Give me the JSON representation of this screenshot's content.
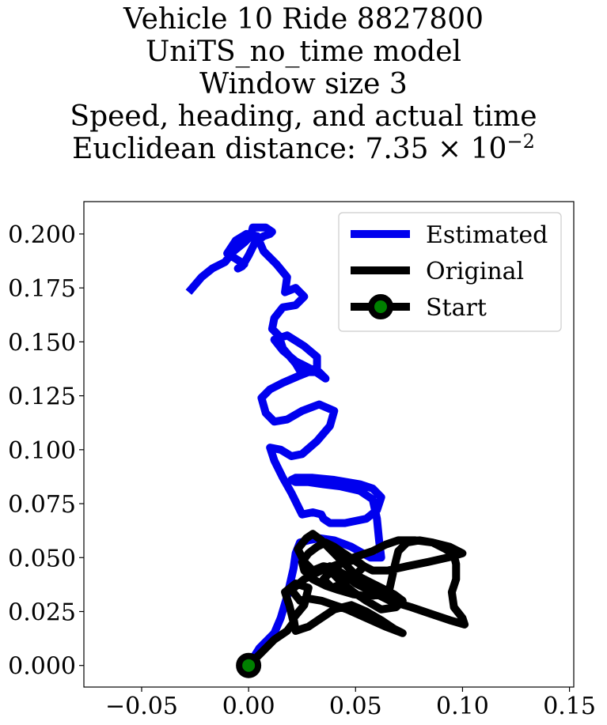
{
  "title": {
    "line1": "Vehicle 10 Ride 8827800",
    "line2": "UniTS_no_time model",
    "line3": "Window size 3",
    "line4": "Speed, heading, and actual time",
    "line5_prefix": "Euclidean distance: 7.35 × 10",
    "line5_exp": "−2"
  },
  "chart_data": {
    "type": "line",
    "title": "Vehicle 10 Ride 8827800 / UniTS_no_time model / Window size 3 / Speed, heading, and actual time / Euclidean distance: 7.35 × 10^-2",
    "xlabel": "",
    "ylabel": "",
    "xlim": [
      -0.077,
      0.152
    ],
    "ylim": [
      -0.01,
      0.215
    ],
    "x_ticks": [
      "−0.05",
      "0.00",
      "0.05",
      "0.10",
      "0.15"
    ],
    "x_tick_values": [
      -0.05,
      0.0,
      0.05,
      0.1,
      0.15
    ],
    "y_ticks": [
      "0.000",
      "0.025",
      "0.050",
      "0.075",
      "0.100",
      "0.125",
      "0.150",
      "0.175",
      "0.200"
    ],
    "y_tick_values": [
      0.0,
      0.025,
      0.05,
      0.075,
      0.1,
      0.125,
      0.15,
      0.175,
      0.2
    ],
    "grid": false,
    "legend_position": "top-right",
    "legend": [
      "Estimated",
      "Original",
      "Start"
    ],
    "colors": {
      "estimated": "#0000ee",
      "original": "#000000",
      "start_fill": "#008000",
      "start_edge": "#000000"
    },
    "series": [
      {
        "name": "Estimated",
        "x": [
          0.0,
          0.005,
          0.012,
          0.015,
          0.018,
          0.021,
          0.022,
          0.024,
          0.028,
          0.033,
          0.04,
          0.048,
          0.057,
          0.062,
          0.061,
          0.06,
          0.058,
          0.052,
          0.043,
          0.035,
          0.028,
          0.022,
          0.02,
          0.022,
          0.03,
          0.04,
          0.052,
          0.058,
          0.062,
          0.06,
          0.055,
          0.045,
          0.038,
          0.035,
          0.034,
          0.03,
          0.025,
          0.02,
          0.016,
          0.012,
          0.01,
          0.015,
          0.02,
          0.025,
          0.032,
          0.038,
          0.04,
          0.033,
          0.025,
          0.018,
          0.012,
          0.008,
          0.006,
          0.01,
          0.016,
          0.023,
          0.028,
          0.033,
          0.036,
          0.03,
          0.022,
          0.016,
          0.012,
          0.018,
          0.026,
          0.032,
          0.032,
          0.025,
          0.022,
          0.016,
          0.014,
          0.011,
          0.012,
          0.016,
          0.022,
          0.026,
          0.022,
          0.017,
          0.018,
          0.013,
          0.007,
          0.004,
          -0.001,
          -0.006,
          -0.01,
          -0.002,
          -0.005,
          -0.003,
          0.0,
          0.003,
          0.007,
          0.01,
          0.011,
          0.008,
          0.002,
          0.001,
          -0.002,
          -0.007,
          -0.011,
          -0.017,
          -0.022,
          -0.028
        ],
        "y": [
          0.0,
          0.008,
          0.015,
          0.022,
          0.032,
          0.045,
          0.052,
          0.057,
          0.058,
          0.059,
          0.058,
          0.055,
          0.05,
          0.05,
          0.058,
          0.068,
          0.077,
          0.081,
          0.083,
          0.084,
          0.085,
          0.085,
          0.086,
          0.087,
          0.087,
          0.086,
          0.084,
          0.082,
          0.078,
          0.072,
          0.068,
          0.066,
          0.066,
          0.068,
          0.07,
          0.071,
          0.07,
          0.08,
          0.087,
          0.095,
          0.101,
          0.1,
          0.097,
          0.098,
          0.104,
          0.111,
          0.118,
          0.121,
          0.118,
          0.114,
          0.113,
          0.117,
          0.124,
          0.128,
          0.131,
          0.134,
          0.136,
          0.136,
          0.133,
          0.137,
          0.141,
          0.146,
          0.151,
          0.153,
          0.148,
          0.143,
          0.138,
          0.135,
          0.14,
          0.147,
          0.153,
          0.156,
          0.161,
          0.166,
          0.167,
          0.171,
          0.175,
          0.173,
          0.18,
          0.186,
          0.192,
          0.199,
          0.2,
          0.197,
          0.191,
          0.186,
          0.184,
          0.185,
          0.19,
          0.196,
          0.199,
          0.2,
          0.201,
          0.203,
          0.203,
          0.199,
          0.196,
          0.192,
          0.187,
          0.184,
          0.18,
          0.173
        ]
      },
      {
        "name": "Original",
        "x": [
          0.0,
          0.006,
          0.012,
          0.018,
          0.021,
          0.019,
          0.017,
          0.022,
          0.028,
          0.026,
          0.021,
          0.022,
          0.028,
          0.034,
          0.04,
          0.048,
          0.055,
          0.062,
          0.068,
          0.072,
          0.064,
          0.055,
          0.046,
          0.04,
          0.034,
          0.028,
          0.024,
          0.02,
          0.026,
          0.034,
          0.042,
          0.05,
          0.054,
          0.05,
          0.044,
          0.039,
          0.035,
          0.04,
          0.046,
          0.052,
          0.058,
          0.064,
          0.07,
          0.078,
          0.086,
          0.094,
          0.1,
          0.093,
          0.084,
          0.074,
          0.065,
          0.058,
          0.052,
          0.046,
          0.04,
          0.036,
          0.032,
          0.028,
          0.025,
          0.026,
          0.03,
          0.036,
          0.042,
          0.049,
          0.056,
          0.062,
          0.066,
          0.068,
          0.07,
          0.074,
          0.08,
          0.086,
          0.092,
          0.096,
          0.097,
          0.097,
          0.095,
          0.096,
          0.1,
          0.101,
          0.094,
          0.085,
          0.076,
          0.066,
          0.058,
          0.05,
          0.045,
          0.04,
          0.035,
          0.03,
          0.026,
          0.023,
          0.027,
          0.03,
          0.034,
          0.038,
          0.042,
          0.046,
          0.05,
          0.056,
          0.062,
          0.068,
          0.072,
          0.069,
          0.062,
          0.055,
          0.049,
          0.044,
          0.04,
          0.038,
          0.036
        ],
        "y": [
          0.0,
          0.006,
          0.012,
          0.016,
          0.02,
          0.028,
          0.034,
          0.038,
          0.036,
          0.028,
          0.022,
          0.016,
          0.018,
          0.022,
          0.026,
          0.028,
          0.025,
          0.021,
          0.017,
          0.015,
          0.018,
          0.022,
          0.026,
          0.028,
          0.03,
          0.031,
          0.03,
          0.035,
          0.04,
          0.044,
          0.047,
          0.049,
          0.046,
          0.042,
          0.038,
          0.036,
          0.04,
          0.045,
          0.049,
          0.051,
          0.053,
          0.056,
          0.058,
          0.058,
          0.057,
          0.055,
          0.052,
          0.05,
          0.048,
          0.046,
          0.044,
          0.044,
          0.047,
          0.051,
          0.055,
          0.057,
          0.055,
          0.052,
          0.048,
          0.044,
          0.04,
          0.037,
          0.035,
          0.033,
          0.032,
          0.033,
          0.036,
          0.045,
          0.053,
          0.057,
          0.058,
          0.057,
          0.054,
          0.051,
          0.047,
          0.04,
          0.034,
          0.027,
          0.022,
          0.019,
          0.021,
          0.024,
          0.027,
          0.03,
          0.034,
          0.038,
          0.042,
          0.045,
          0.046,
          0.044,
          0.048,
          0.054,
          0.059,
          0.061,
          0.058,
          0.054,
          0.05,
          0.046,
          0.042,
          0.039,
          0.036,
          0.033,
          0.03,
          0.027,
          0.026,
          0.03,
          0.034,
          0.038,
          0.042,
          0.046,
          0.044
        ]
      },
      {
        "name": "Start",
        "x": [
          0.0
        ],
        "y": [
          0.0
        ]
      }
    ]
  }
}
